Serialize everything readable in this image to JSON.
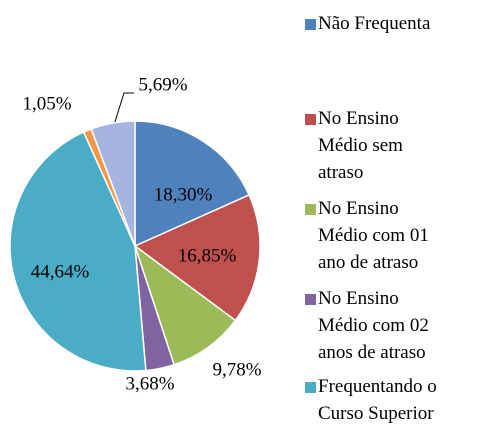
{
  "chart_data": {
    "type": "pie",
    "categories": [
      "Não Frequenta",
      "No Ensino Médio sem atraso",
      "No Ensino Médio com 01 ano de atraso",
      "No Ensino Médio com 02 anos de atraso",
      "Frequentando o Curso Superior",
      null,
      null
    ],
    "values": [
      18.3,
      16.85,
      9.78,
      3.68,
      44.64,
      1.05,
      5.69
    ],
    "value_labels": [
      "18,30%",
      "16,85%",
      "9,78%",
      "3,68%",
      "44,64%",
      "1,05%",
      "5,69%"
    ],
    "colors": [
      "#4f81bd",
      "#c0504d",
      "#9bbb59",
      "#8064a2",
      "#4bacc6",
      "#f79646",
      "#a5b5e0"
    ],
    "legend": "right"
  }
}
